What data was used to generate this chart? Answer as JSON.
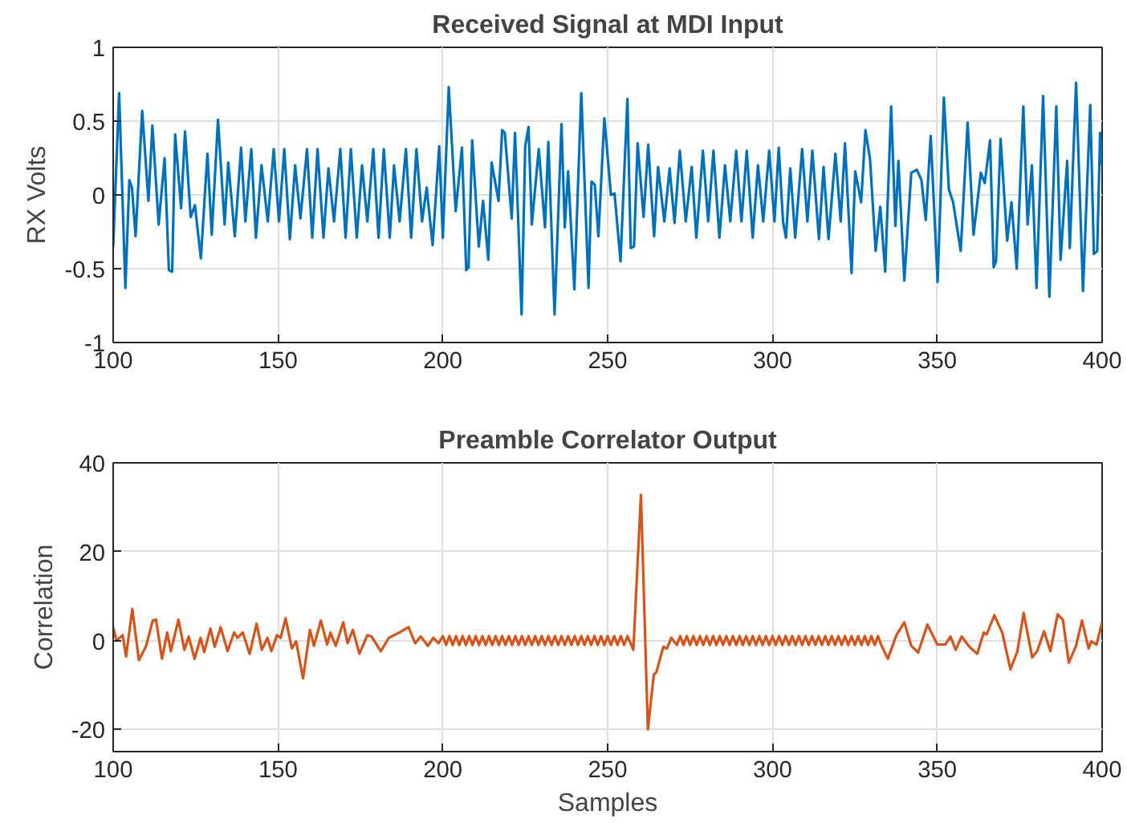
{
  "chart_data": [
    {
      "type": "line",
      "title": "Received Signal at MDI Input",
      "ylabel": "RX Volts",
      "xlim": [
        100,
        400
      ],
      "ylim": [
        -1,
        1
      ],
      "xticks": [
        100,
        150,
        200,
        250,
        300,
        350,
        400
      ],
      "yticks": [
        -1,
        -0.5,
        0,
        0.5,
        1
      ],
      "grid": true,
      "series": [
        {
          "color": "#0072bd",
          "x": [
            100,
            101.8,
            103.7,
            104.9,
            105.7,
            106.8,
            108.8,
            110.7,
            111.9,
            113.8,
            115.6,
            116.9,
            117.9,
            118.8,
            120.6,
            121.8,
            123.5,
            124.8,
            126.6,
            128.6,
            129.9,
            131.8,
            133.8,
            134.9,
            136.9,
            138.8,
            140.1,
            141.9,
            143.3,
            145,
            146.9,
            148.7,
            150.3,
            151.9,
            153.6,
            155.2,
            156.8,
            158.8,
            160.4,
            162,
            163.8,
            165.3,
            167,
            168.9,
            170.5,
            172.1,
            173.9,
            175.5,
            177.1,
            178.9,
            180.5,
            182.1,
            183.9,
            185.2,
            186.9,
            188.8,
            190.4,
            192,
            193.7,
            195.1,
            196.9,
            198.9,
            200,
            201.8,
            203.9,
            205.8,
            207.1,
            207.8,
            208.9,
            210.9,
            212.2,
            213.8,
            214.8,
            216.9,
            218,
            218.8,
            220.9,
            221.9,
            223.9,
            225,
            226,
            227,
            229.1,
            231,
            232,
            233.9,
            236,
            237,
            238,
            239.9,
            242,
            244.2,
            245.1,
            246.1,
            247.2,
            249,
            251,
            252.1,
            253.9,
            256,
            257,
            258,
            259.1,
            260.9,
            262.3,
            264.1,
            265.3,
            267.2,
            268.8,
            270.3,
            271.9,
            273.7,
            275.5,
            276.9,
            278.9,
            280.5,
            282.1,
            283.9,
            285.6,
            287.2,
            289,
            290.6,
            292.2,
            294,
            295.6,
            297.2,
            299,
            300.6,
            301.9,
            303.2,
            304.1,
            305.4,
            306.9,
            309,
            310.6,
            312.1,
            314.1,
            315.5,
            317,
            319.1,
            320.7,
            322,
            324,
            325.1,
            326.9,
            328.2,
            329.6,
            331.3,
            332.7,
            334.2,
            336,
            337.3,
            338.2,
            340,
            342.1,
            343.8,
            345.2,
            346.5,
            348,
            350.1,
            352,
            353.5,
            354.8,
            357.1,
            359.2,
            361,
            363.2,
            364.4,
            366,
            367.1,
            367.8,
            369.2,
            371.2,
            372.5,
            374.1,
            376.1,
            377.4,
            378.7,
            380.1,
            382.1,
            384,
            386.1,
            387.4,
            389.4,
            390.2,
            392.1,
            394.2,
            396.4,
            397.5,
            398.5,
            399.4,
            400
          ],
          "values": [
            -0.35,
            0.69,
            -0.63,
            0.1,
            0.05,
            -0.28,
            0.57,
            -0.04,
            0.47,
            -0.2,
            0.25,
            -0.51,
            -0.52,
            0.41,
            -0.09,
            0.43,
            -0.15,
            -0.07,
            -0.43,
            0.28,
            -0.27,
            0.51,
            -0.2,
            0.22,
            -0.28,
            0.32,
            -0.18,
            0.31,
            -0.29,
            0.2,
            -0.18,
            0.31,
            -0.18,
            0.31,
            -0.3,
            0.2,
            -0.16,
            0.31,
            -0.29,
            0.31,
            -0.29,
            0.18,
            -0.18,
            0.31,
            -0.29,
            0.31,
            -0.29,
            0.2,
            -0.18,
            0.31,
            -0.29,
            0.31,
            -0.29,
            0.2,
            -0.18,
            0.31,
            -0.29,
            0.31,
            -0.18,
            0.05,
            -0.34,
            0.33,
            -0.29,
            0.73,
            -0.11,
            0.32,
            -0.51,
            -0.49,
            0.37,
            -0.35,
            -0.04,
            -0.44,
            0.22,
            -0.04,
            0.44,
            0.42,
            -0.16,
            0.42,
            -0.81,
            0.33,
            0.46,
            -0.2,
            0.31,
            -0.22,
            0.36,
            -0.81,
            0.48,
            -0.22,
            0.16,
            -0.64,
            0.69,
            -0.63,
            0.09,
            0.07,
            -0.28,
            0.52,
            0,
            0.01,
            -0.45,
            0.65,
            -0.36,
            -0.35,
            0.35,
            -0.15,
            0.34,
            -0.28,
            0.19,
            -0.18,
            0.18,
            -0.19,
            0.3,
            -0.18,
            0.19,
            -0.29,
            0.3,
            -0.18,
            0.3,
            -0.29,
            0.2,
            -0.18,
            0.3,
            -0.18,
            0.3,
            -0.29,
            0.2,
            -0.18,
            0.3,
            -0.18,
            0.32,
            -0.18,
            -0.29,
            0.18,
            -0.29,
            0.31,
            -0.18,
            0.3,
            -0.3,
            0.19,
            -0.3,
            0.28,
            -0.18,
            0.35,
            -0.53,
            0.16,
            -0.05,
            0.44,
            0.24,
            -0.38,
            -0.08,
            -0.52,
            0.6,
            -0.21,
            0.23,
            -0.58,
            0.15,
            0.17,
            0.1,
            -0.17,
            0.4,
            -0.59,
            0.66,
            0.04,
            -0.05,
            -0.38,
            0.49,
            -0.27,
            0.15,
            0.08,
            0.37,
            -0.49,
            -0.45,
            0.38,
            -0.31,
            -0.05,
            -0.5,
            0.6,
            -0.2,
            0.2,
            -0.63,
            0.67,
            -0.69,
            0.6,
            -0.44,
            0.23,
            -0.36,
            0.76,
            -0.65,
            0.61,
            -0.4,
            -0.38,
            0.42,
            0.2
          ]
        }
      ]
    },
    {
      "type": "line",
      "title": "Preamble Correlator Output",
      "xlabel": "Samples",
      "ylabel": "Correlation",
      "xlim": [
        100,
        400
      ],
      "ylim": [
        -25,
        40
      ],
      "xticks": [
        100,
        150,
        200,
        250,
        300,
        350,
        400
      ],
      "yticks": [
        -20,
        0,
        20,
        40
      ],
      "grid": true,
      "series": [
        {
          "color": "#d95319",
          "x": [
            100,
            101,
            102,
            102.9,
            103.9,
            105.8,
            107.8,
            110,
            112,
            113,
            114.8,
            116.4,
            117.5,
            119.8,
            121.6,
            122.9,
            124.7,
            126.5,
            127.6,
            129.5,
            130.8,
            132.6,
            134.7,
            136.7,
            137.7,
            139.3,
            141.4,
            143.5,
            145.1,
            146.8,
            148,
            149.7,
            150.8,
            152.3,
            154.2,
            155.5,
            157.6,
            159.7,
            160.9,
            163,
            164.9,
            165.9,
            167.5,
            169.8,
            171.1,
            172.7,
            174.7,
            177.1,
            178.4,
            181.2,
            183.6,
            186.8,
            189.6,
            191.6,
            193.3,
            195.5,
            197.1,
            198.7,
            200,
            201,
            202,
            203,
            204,
            205,
            206,
            207,
            208,
            209,
            210,
            211,
            212,
            213,
            214,
            215,
            216,
            217,
            218,
            219,
            220,
            221,
            222,
            223,
            224,
            225,
            226,
            227,
            228,
            229,
            230,
            231,
            232,
            233,
            234,
            235,
            236,
            237,
            238,
            239,
            240,
            241,
            242,
            243,
            244,
            245,
            246,
            247,
            248,
            249,
            250,
            251,
            252,
            253,
            254,
            255,
            256,
            257.8,
            260.1,
            262.2,
            264,
            264.8,
            266.9,
            268,
            269.3,
            271,
            272,
            273,
            274,
            275,
            276,
            277,
            278,
            279,
            280,
            281,
            282,
            283,
            284,
            285,
            286,
            287,
            288,
            289,
            290,
            291,
            292,
            293,
            294,
            295,
            296,
            297,
            298,
            299,
            300,
            301,
            302,
            303,
            304,
            305,
            306,
            307,
            308,
            309,
            310,
            311,
            312,
            313,
            314,
            315,
            316,
            317,
            318,
            319,
            320,
            321,
            322,
            323,
            324,
            325,
            326,
            327,
            328,
            329,
            330,
            331,
            332,
            333,
            335,
            337.6,
            340,
            342.1,
            344.2,
            347,
            350,
            352.4,
            354,
            355.6,
            357.4,
            359.7,
            362.1,
            364.1,
            365,
            367.3,
            369.7,
            372.2,
            374.3,
            376.2,
            378.8,
            380.3,
            382.4,
            384.3,
            386.5,
            388.1,
            389.9,
            392.1,
            393.9,
            395.9,
            396.7,
            398.3,
            400
          ],
          "values": [
            3,
            0,
            0.6,
            1.2,
            -3.6,
            7.1,
            -4.4,
            -1.2,
            4.5,
            4.7,
            -4.1,
            1.8,
            -2.4,
            4.7,
            -2.1,
            0.9,
            -4.1,
            0.6,
            -2.6,
            2.7,
            -1.4,
            3,
            -2.4,
            1.8,
            0.6,
            1.8,
            -3,
            3.8,
            -2.1,
            0.6,
            -2.4,
            1.2,
            0.6,
            5,
            -1.8,
            -0.2,
            -8.5,
            2.4,
            -1.2,
            4.5,
            -0.9,
            1.8,
            -1.2,
            4.1,
            -0.6,
            2.4,
            -3,
            1.2,
            0.9,
            -2.4,
            0.6,
            1.8,
            3,
            -0.6,
            0.9,
            -1.2,
            0.6,
            -0.6,
            1,
            -1,
            1,
            -1,
            1,
            -1,
            1,
            -1,
            1,
            -1,
            1,
            -1,
            1,
            -1,
            1,
            -1,
            1,
            -1,
            1,
            -1,
            1,
            -1,
            1,
            -1,
            1,
            -1,
            1,
            -1,
            1,
            -1,
            1,
            -1,
            1,
            -1,
            1,
            -1,
            1,
            -1,
            1,
            -1,
            1,
            -1,
            1,
            -1,
            1,
            -1,
            1,
            -1,
            1,
            -1,
            1,
            -1,
            1,
            -1,
            1,
            -1,
            1,
            -2.1,
            32.8,
            -20,
            -7.7,
            -7.1,
            -1.4,
            -1.8,
            0.6,
            -1,
            1,
            -1,
            1,
            -1,
            1,
            -1,
            1,
            -1,
            1,
            -1,
            1,
            -1,
            1,
            -1,
            1,
            -1,
            1,
            -1,
            1,
            -1,
            1,
            -1,
            1,
            -1,
            1,
            -1,
            1,
            -1,
            1,
            -1,
            1,
            -1,
            1,
            -1,
            1,
            -1,
            1,
            -1,
            1,
            -1,
            1,
            -1,
            1,
            -1,
            1,
            -1,
            1,
            -1,
            1,
            -1,
            1,
            -1,
            1,
            -1,
            1,
            -1,
            1,
            -1,
            1,
            -1,
            1,
            -1,
            -4.1,
            1.2,
            4.1,
            -1.2,
            -2.7,
            3.6,
            -0.9,
            -0.9,
            0.9,
            -2.1,
            0.9,
            -1.4,
            -3,
            1.8,
            1.4,
            5.7,
            1.8,
            -6.5,
            -2.4,
            6.2,
            -3.8,
            -2.4,
            2.1,
            -2.4,
            5.9,
            4.7,
            -5,
            -1.2,
            4.5,
            -1.8,
            -0.2,
            -0.9,
            4.1
          ]
        }
      ]
    }
  ]
}
